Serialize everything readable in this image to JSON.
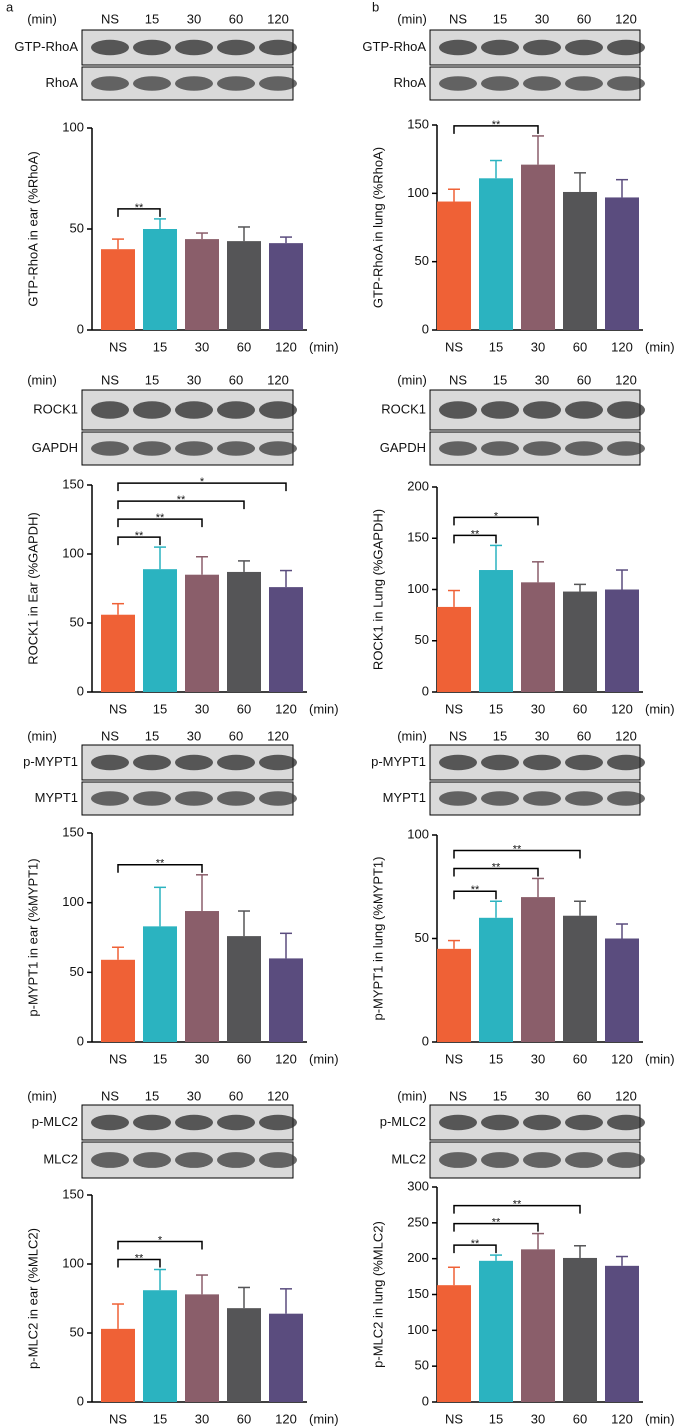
{
  "panel_labels": [
    "a",
    "b"
  ],
  "blots": [
    {
      "unit": "(min)",
      "lanes": [
        "NS",
        "15",
        "30",
        "60",
        "120"
      ],
      "bands": [
        "GTP-RhoA",
        "RhoA"
      ]
    },
    {
      "unit": "(min)",
      "lanes": [
        "NS",
        "15",
        "30",
        "60",
        "120"
      ],
      "bands": [
        "GTP-RhoA",
        "RhoA"
      ]
    },
    {
      "unit": "(min)",
      "lanes": [
        "NS",
        "15",
        "30",
        "60",
        "120"
      ],
      "bands": [
        "ROCK1",
        "GAPDH"
      ]
    },
    {
      "unit": "(min)",
      "lanes": [
        "NS",
        "15",
        "30",
        "60",
        "120"
      ],
      "bands": [
        "ROCK1",
        "GAPDH"
      ]
    },
    {
      "unit": "(min)",
      "lanes": [
        "NS",
        "15",
        "30",
        "60",
        "120"
      ],
      "bands": [
        "p-MYPT1",
        "MYPT1"
      ]
    },
    {
      "unit": "(min)",
      "lanes": [
        "NS",
        "15",
        "30",
        "60",
        "120"
      ],
      "bands": [
        "p-MYPT1",
        "MYPT1"
      ]
    },
    {
      "unit": "(min)",
      "lanes": [
        "NS",
        "15",
        "30",
        "60",
        "120"
      ],
      "bands": [
        "p-MLC2",
        "MLC2"
      ]
    },
    {
      "unit": "(min)",
      "lanes": [
        "NS",
        "15",
        "30",
        "60",
        "120"
      ],
      "bands": [
        "p-MLC2",
        "MLC2"
      ]
    }
  ],
  "chart_data": [
    {
      "type": "bar",
      "ylabel": "GTP-RhoA in ear (%RhoA)",
      "xlabel": "(min)",
      "categories": [
        "NS",
        "15",
        "30",
        "60",
        "120"
      ],
      "values": [
        40,
        50,
        45,
        44,
        43
      ],
      "errors": [
        5,
        5,
        3,
        7,
        3
      ],
      "colors": [
        "#ef6136",
        "#2bb3c0",
        "#8a5e6a",
        "#555557",
        "#5a4c7e"
      ],
      "ylim": [
        0,
        100
      ],
      "yticks": [
        0,
        50,
        100
      ],
      "annotations": [
        {
          "text": "**",
          "from": "NS",
          "to": "15"
        }
      ]
    },
    {
      "type": "bar",
      "ylabel": "GTP-RhoA in lung (%RhoA)",
      "xlabel": "(min)",
      "categories": [
        "NS",
        "15",
        "30",
        "60",
        "120"
      ],
      "values": [
        94,
        111,
        121,
        101,
        97
      ],
      "errors": [
        9,
        13,
        21,
        14,
        13
      ],
      "colors": [
        "#ef6136",
        "#2bb3c0",
        "#8a5e6a",
        "#555557",
        "#5a4c7e"
      ],
      "ylim": [
        0,
        150
      ],
      "yticks": [
        0,
        50,
        100,
        150
      ],
      "annotations": [
        {
          "text": "**",
          "from": "NS",
          "to": "30"
        }
      ]
    },
    {
      "type": "bar",
      "ylabel": "ROCK1 in Ear (%GAPDH)",
      "xlabel": "(min)",
      "categories": [
        "NS",
        "15",
        "30",
        "60",
        "120"
      ],
      "values": [
        56,
        89,
        85,
        87,
        76
      ],
      "errors": [
        8,
        16,
        13,
        8,
        12
      ],
      "colors": [
        "#ef6136",
        "#2bb3c0",
        "#8a5e6a",
        "#555557",
        "#5a4c7e"
      ],
      "ylim": [
        0,
        150
      ],
      "yticks": [
        0,
        50,
        100,
        150
      ],
      "annotations": [
        {
          "text": "**",
          "from": "NS",
          "to": "15"
        },
        {
          "text": "**",
          "from": "NS",
          "to": "30"
        },
        {
          "text": "**",
          "from": "NS",
          "to": "60"
        },
        {
          "text": "*",
          "from": "NS",
          "to": "120"
        }
      ]
    },
    {
      "type": "bar",
      "ylabel": "ROCK1 in Lung (%GAPDH)",
      "xlabel": "(min)",
      "categories": [
        "NS",
        "15",
        "30",
        "60",
        "120"
      ],
      "values": [
        83,
        119,
        107,
        98,
        100
      ],
      "errors": [
        16,
        24,
        20,
        7,
        19
      ],
      "colors": [
        "#ef6136",
        "#2bb3c0",
        "#8a5e6a",
        "#555557",
        "#5a4c7e"
      ],
      "ylim": [
        0,
        200
      ],
      "yticks": [
        0,
        50,
        100,
        150,
        200
      ],
      "annotations": [
        {
          "text": "**",
          "from": "NS",
          "to": "15"
        },
        {
          "text": "*",
          "from": "NS",
          "to": "30"
        }
      ]
    },
    {
      "type": "bar",
      "ylabel": "p-MYPT1 in ear (%MYPT1)",
      "xlabel": "(min)",
      "categories": [
        "NS",
        "15",
        "30",
        "60",
        "120"
      ],
      "values": [
        59,
        83,
        94,
        76,
        60
      ],
      "errors": [
        9,
        28,
        26,
        18,
        18
      ],
      "colors": [
        "#ef6136",
        "#2bb3c0",
        "#8a5e6a",
        "#555557",
        "#5a4c7e"
      ],
      "ylim": [
        0,
        150
      ],
      "yticks": [
        0,
        50,
        100,
        150
      ],
      "annotations": [
        {
          "text": "**",
          "from": "NS",
          "to": "30"
        }
      ]
    },
    {
      "type": "bar",
      "ylabel": "p-MYPT1 in lung (%MYPT1)",
      "xlabel": "(min)",
      "categories": [
        "NS",
        "15",
        "30",
        "60",
        "120"
      ],
      "values": [
        45,
        60,
        70,
        61,
        50
      ],
      "errors": [
        4,
        8,
        9,
        7,
        7
      ],
      "colors": [
        "#ef6136",
        "#2bb3c0",
        "#8a5e6a",
        "#555557",
        "#5a4c7e"
      ],
      "ylim": [
        0,
        100
      ],
      "yticks": [
        0,
        50,
        100
      ],
      "annotations": [
        {
          "text": "**",
          "from": "NS",
          "to": "15"
        },
        {
          "text": "**",
          "from": "NS",
          "to": "30"
        },
        {
          "text": "**",
          "from": "NS",
          "to": "60"
        }
      ]
    },
    {
      "type": "bar",
      "ylabel": "p-MLC2 in ear (%MLC2)",
      "xlabel": "(min)",
      "categories": [
        "NS",
        "15",
        "30",
        "60",
        "120"
      ],
      "values": [
        53,
        81,
        78,
        68,
        64
      ],
      "errors": [
        18,
        15,
        14,
        15,
        18
      ],
      "colors": [
        "#ef6136",
        "#2bb3c0",
        "#8a5e6a",
        "#555557",
        "#5a4c7e"
      ],
      "ylim": [
        0,
        150
      ],
      "yticks": [
        0,
        50,
        100,
        150
      ],
      "annotations": [
        {
          "text": "**",
          "from": "NS",
          "to": "15"
        },
        {
          "text": "*",
          "from": "NS",
          "to": "30"
        }
      ]
    },
    {
      "type": "bar",
      "ylabel": "p-MLC2 in lung (%MLC2)",
      "xlabel": "(min)",
      "categories": [
        "NS",
        "15",
        "30",
        "60",
        "120"
      ],
      "values": [
        163,
        197,
        213,
        201,
        190
      ],
      "errors": [
        25,
        8,
        22,
        17,
        13
      ],
      "colors": [
        "#ef6136",
        "#2bb3c0",
        "#8a5e6a",
        "#555557",
        "#5a4c7e"
      ],
      "ylim": [
        0,
        300
      ],
      "yticks": [
        0,
        50,
        100,
        150,
        200,
        250,
        300
      ],
      "annotations": [
        {
          "text": "**",
          "from": "NS",
          "to": "15"
        },
        {
          "text": "**",
          "from": "NS",
          "to": "30"
        },
        {
          "text": "**",
          "from": "NS",
          "to": "60"
        }
      ]
    }
  ]
}
